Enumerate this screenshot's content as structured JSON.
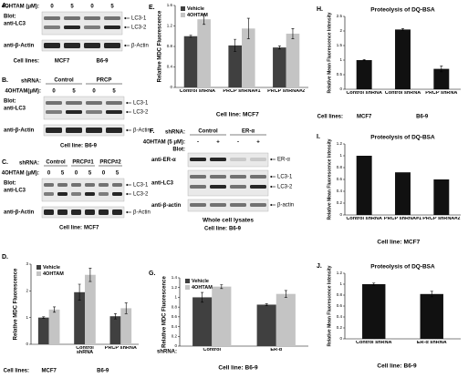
{
  "blots": {
    "A": {
      "letter": "A.",
      "treatment": "4OHTAM (μM):",
      "doses": [
        "0",
        "5",
        "0",
        "5"
      ],
      "blot": "Blot:",
      "antibody": "anti-LC3",
      "bands": [
        "LC3-1",
        "LC3-2"
      ],
      "loading": "anti-β-Actin",
      "loading_band": "β-Actin",
      "cell_label": "Cell lines:",
      "cells": [
        "MCF7",
        "B6-9"
      ]
    },
    "B": {
      "letter": "B.",
      "shrna_label": "shRNA:",
      "shrna": [
        "Control",
        "PRCP"
      ],
      "treatment": "4OHTAM(μM):",
      "doses": [
        "0",
        "5",
        "0",
        "5"
      ],
      "blot": "Blot:",
      "antibody": "anti-LC3",
      "bands": [
        "LC3-1",
        "LC3-2"
      ],
      "loading": "anti-β-Actin",
      "loading_band": "β-Actin",
      "cell_label": "Cell line:",
      "cells": [
        "B6-9"
      ]
    },
    "C": {
      "letter": "C.",
      "shrna_label": "shRNA:",
      "shrna": [
        "Control",
        "PRCP#1",
        "PRCP#2"
      ],
      "treatment": "4OHTAM (μM):",
      "doses": [
        "0",
        "5",
        "0",
        "5",
        "0",
        "5"
      ],
      "blot": "Blot:",
      "antibody": "anti-LC3",
      "bands": [
        "LC3-1",
        "LC3-2"
      ],
      "loading": "anti-β-Actin",
      "loading_band": "β-Actin",
      "cell_label": "Cell line:",
      "cells": [
        "MCF7"
      ]
    },
    "F": {
      "letter": "F.",
      "shrna_label": "shRNA:",
      "shrna": [
        "Control",
        "ER-α"
      ],
      "treatment": "4OHTAM (5 μM):",
      "doses": [
        "-",
        "+",
        "-",
        "+"
      ],
      "blot": "Blot:",
      "antibodies": [
        "anti-ER-α",
        "anti-LC3",
        "anti-β-actin"
      ],
      "bands": [
        "ER-α",
        "LC3-1",
        "LC3-2",
        "β-actin"
      ],
      "caption": "Whole cell lysates",
      "cell_label": "Cell line:",
      "cells": [
        "B6-9"
      ]
    }
  },
  "chart_data": [
    {
      "panel": "D.",
      "type": "bar",
      "ylabel": "Relative MDC Fluorescence",
      "categories": [
        null,
        "Control shRNA",
        "PRCP shRNA"
      ],
      "series": [
        {
          "name": "Vehicle",
          "color": "#404040",
          "values": [
            1.0,
            1.95,
            1.05
          ],
          "errors": [
            0.03,
            0.3,
            0.1
          ]
        },
        {
          "name": "4OHTAM",
          "color": "#c4c4c4",
          "values": [
            1.3,
            2.6,
            1.35
          ],
          "errors": [
            0.1,
            0.25,
            0.2
          ]
        }
      ],
      "ylim": [
        0,
        3
      ],
      "yticks": [
        0,
        1,
        2,
        3
      ],
      "legend": "upper left",
      "cell_label": "Cell lines:",
      "cells": [
        "MCF7",
        "B6-9"
      ]
    },
    {
      "panel": "E.",
      "type": "bar",
      "ylabel": "Relative MDC Fluorescence",
      "categories": [
        "Control shRNA",
        "PRCP shRNA#1",
        "PRCP shRNA#2"
      ],
      "series": [
        {
          "name": "Vehicle",
          "color": "#404040",
          "values": [
            1.0,
            0.82,
            0.78
          ],
          "errors": [
            0.02,
            0.12,
            0.03
          ]
        },
        {
          "name": "4OHTAM",
          "color": "#c4c4c4",
          "values": [
            1.33,
            1.15,
            1.05
          ],
          "errors": [
            0.1,
            0.2,
            0.1
          ]
        }
      ],
      "ylim": [
        0,
        1.6
      ],
      "yticks": [
        0,
        0.4,
        0.8,
        1.2,
        1.6
      ],
      "legend": "upper left",
      "cell_label": "Cell line:",
      "cells": [
        "MCF7"
      ]
    },
    {
      "panel": "G.",
      "type": "bar",
      "ylabel": "Relative MDC Fluorescence",
      "category_label": "shRNA:",
      "categories": [
        "Control",
        "ER-α"
      ],
      "series": [
        {
          "name": "Vehicle",
          "color": "#404040",
          "values": [
            1.0,
            0.85
          ],
          "errors": [
            0.1,
            0.02
          ]
        },
        {
          "name": "4OHTAM",
          "color": "#c4c4c4",
          "values": [
            1.22,
            1.07
          ],
          "errors": [
            0.04,
            0.07
          ]
        }
      ],
      "ylim": [
        0,
        1.4
      ],
      "yticks": [
        0,
        0.2,
        0.4,
        0.6,
        0.8,
        1,
        1.2,
        1.4
      ],
      "legend": "upper left",
      "cell_label": "Cell line:",
      "cells": [
        "B6-9"
      ]
    },
    {
      "panel": "H.",
      "type": "bar",
      "title": "Proteolysis of DQ-BSA",
      "ylabel": "Relative Mean Fluorescence Intensity",
      "categories": [
        "Control shRNA",
        "Control shRNA",
        "PRCP shRNA"
      ],
      "series": [
        {
          "color": "#111111",
          "values": [
            1.0,
            2.05,
            0.7
          ],
          "errors": [
            0.02,
            0.03,
            0.1
          ]
        }
      ],
      "ylim": [
        0,
        2.5
      ],
      "yticks": [
        0,
        0.5,
        1,
        1.5,
        2,
        2.5
      ],
      "cell_label": "Cell lines:",
      "cells": [
        "MCF7",
        "B6-9"
      ]
    },
    {
      "panel": "I.",
      "type": "bar",
      "title": "Proteolysis of DQ-BSA",
      "ylabel": "Relative Mean Fluorescence Intensity",
      "categories": [
        "Control shRNA",
        "PRCP shRNA#1",
        "PRCP shRNA#2"
      ],
      "series": [
        {
          "color": "#111111",
          "values": [
            1.0,
            0.72,
            0.6
          ]
        }
      ],
      "ylim": [
        0,
        1.2
      ],
      "yticks": [
        0,
        0.2,
        0.4,
        0.6,
        0.8,
        1,
        1.2
      ],
      "cell_label": "Cell line:",
      "cells": [
        "MCF7"
      ]
    },
    {
      "panel": "J.",
      "type": "bar",
      "title": "Proteolysis of DQ-BSA",
      "ylabel": "Relative Mean Fluorescence Intensity",
      "categories": [
        "Control shRNA",
        "ER-α shRNA"
      ],
      "series": [
        {
          "color": "#111111",
          "values": [
            1.0,
            0.82
          ],
          "errors": [
            0.02,
            0.05
          ]
        }
      ],
      "ylim": [
        0,
        1.2
      ],
      "yticks": [
        0,
        0.2,
        0.4,
        0.6,
        0.8,
        1,
        1.2
      ],
      "cell_label": "Cell line:",
      "cells": [
        "B6-9"
      ]
    }
  ]
}
